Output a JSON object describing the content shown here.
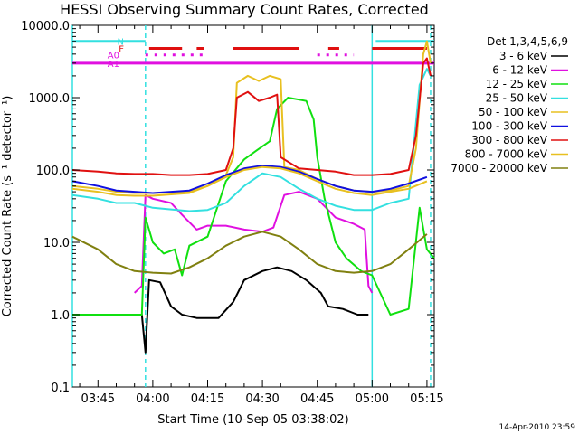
{
  "chart_data": {
    "type": "line",
    "title": "HESSI Observing Summary Count Rates, Corrected",
    "xlabel": "Start Time (10-Sep-05 03:38:02)",
    "ylabel": "Corrected Count Rate (s⁻¹ detector⁻¹)",
    "footer": "14-Apr-2010 23:59",
    "y_scale": "log",
    "ylim": [
      0.1,
      10000.0
    ],
    "xlim": [
      "03:38",
      "05:17"
    ],
    "y_ticks": [
      "0.1",
      "1.0",
      "10.0",
      "100.0",
      "1000.0",
      "10000.0"
    ],
    "x_ticks": [
      "03:45",
      "04:00",
      "04:15",
      "04:30",
      "04:45",
      "05:00",
      "05:15"
    ],
    "legend": {
      "title": "Det 1,3,4,5,6,9",
      "placement": "right"
    },
    "flags": [
      {
        "label": "N",
        "color": "#33e0e0",
        "intervals": [
          [
            "03:38",
            "03:58"
          ],
          [
            "05:01",
            "05:17"
          ]
        ],
        "level": 6000
      },
      {
        "label": "F",
        "color": "#e01010",
        "intervals": [
          [
            "03:59",
            "04:08"
          ],
          [
            "04:12",
            "04:14"
          ],
          [
            "04:22",
            "04:40"
          ],
          [
            "04:48",
            "04:51"
          ],
          [
            "05:00",
            "05:15"
          ]
        ],
        "level": 4800
      },
      {
        "label": "A0",
        "color": "#e010e0",
        "dotted_intervals": [
          [
            "03:58",
            "04:14"
          ],
          [
            "04:45",
            "04:55"
          ]
        ],
        "level": 3900
      },
      {
        "label": "A1",
        "color": "#e010e0",
        "intervals": [
          [
            "03:38",
            "05:17"
          ]
        ],
        "level": 3000
      }
    ],
    "vlines": [
      {
        "x": "03:38",
        "color": "#33e0e0",
        "style": "solid"
      },
      {
        "x": "03:58",
        "color": "#33e0e0",
        "style": "dashed"
      },
      {
        "x": "05:00",
        "color": "#33e0e0",
        "style": "solid"
      },
      {
        "x": "05:16",
        "color": "#33e0e0",
        "style": "dashed"
      }
    ],
    "series": [
      {
        "name": "3 - 6 keV",
        "color": "#000000",
        "points": [
          [
            "03:38",
            1.0
          ],
          [
            "03:45",
            1.0
          ],
          [
            "03:55",
            1.0
          ],
          [
            "03:57",
            1.0
          ],
          [
            "03:58",
            0.3
          ],
          [
            "03:59",
            3.0
          ],
          [
            "04:02",
            2.8
          ],
          [
            "04:05",
            1.3
          ],
          [
            "04:08",
            1.0
          ],
          [
            "04:12",
            0.9
          ],
          [
            "04:18",
            0.9
          ],
          [
            "04:22",
            1.5
          ],
          [
            "04:25",
            3.0
          ],
          [
            "04:30",
            4.0
          ],
          [
            "04:34",
            4.5
          ],
          [
            "04:38",
            4.0
          ],
          [
            "04:42",
            3.0
          ],
          [
            "04:46",
            2.0
          ],
          [
            "04:48",
            1.3
          ],
          [
            "04:52",
            1.2
          ],
          [
            "04:56",
            1.0
          ],
          [
            "04:59",
            1.0
          ]
        ]
      },
      {
        "name": "6 - 12 keV",
        "color": "#e010e0",
        "points": [
          [
            "03:55",
            2.0
          ],
          [
            "03:57",
            2.5
          ],
          [
            "03:58",
            45
          ],
          [
            "04:00",
            40
          ],
          [
            "04:05",
            35
          ],
          [
            "04:08",
            24
          ],
          [
            "04:12",
            15
          ],
          [
            "04:15",
            17
          ],
          [
            "04:20",
            17
          ],
          [
            "04:25",
            15
          ],
          [
            "04:30",
            14
          ],
          [
            "04:33",
            16
          ],
          [
            "04:36",
            45
          ],
          [
            "04:40",
            50
          ],
          [
            "04:45",
            40
          ],
          [
            "04:50",
            22
          ],
          [
            "04:55",
            18
          ],
          [
            "04:58",
            15
          ],
          [
            "04:59",
            2.5
          ],
          [
            "05:00",
            2.0
          ]
        ]
      },
      {
        "name": "12 - 25 keV",
        "color": "#10e010",
        "points": [
          [
            "03:38",
            1.0
          ],
          [
            "03:55",
            1.0
          ],
          [
            "03:57",
            1.0
          ],
          [
            "03:58",
            22
          ],
          [
            "04:00",
            10
          ],
          [
            "04:03",
            7
          ],
          [
            "04:06",
            8
          ],
          [
            "04:08",
            3.5
          ],
          [
            "04:10",
            9
          ],
          [
            "04:15",
            12
          ],
          [
            "04:20",
            70
          ],
          [
            "04:25",
            140
          ],
          [
            "04:28",
            180
          ],
          [
            "04:32",
            250
          ],
          [
            "04:34",
            700
          ],
          [
            "04:37",
            1000
          ],
          [
            "04:42",
            900
          ],
          [
            "04:44",
            500
          ],
          [
            "04:45",
            150
          ],
          [
            "04:47",
            40
          ],
          [
            "04:50",
            10
          ],
          [
            "04:53",
            6
          ],
          [
            "04:57",
            4
          ],
          [
            "05:00",
            3.5
          ],
          [
            "05:05",
            1.0
          ],
          [
            "05:10",
            1.2
          ],
          [
            "05:13",
            30
          ],
          [
            "05:15",
            8
          ],
          [
            "05:17",
            6
          ]
        ]
      },
      {
        "name": "25 - 50 keV",
        "color": "#33e0e0",
        "points": [
          [
            "03:38",
            45
          ],
          [
            "03:45",
            40
          ],
          [
            "03:50",
            35
          ],
          [
            "03:55",
            35
          ],
          [
            "03:58",
            32
          ],
          [
            "04:00",
            30
          ],
          [
            "04:10",
            27
          ],
          [
            "04:15",
            28
          ],
          [
            "04:20",
            35
          ],
          [
            "04:25",
            60
          ],
          [
            "04:30",
            90
          ],
          [
            "04:35",
            80
          ],
          [
            "04:40",
            55
          ],
          [
            "04:45",
            40
          ],
          [
            "04:50",
            32
          ],
          [
            "04:55",
            28
          ],
          [
            "05:00",
            28
          ],
          [
            "05:05",
            35
          ],
          [
            "05:10",
            40
          ],
          [
            "05:13",
            1500
          ],
          [
            "05:15",
            2500
          ],
          [
            "05:16",
            2000
          ]
        ]
      },
      {
        "name": "50 - 100 keV",
        "color": "#e8c020",
        "points": [
          [
            "03:38",
            60
          ],
          [
            "03:45",
            55
          ],
          [
            "03:50",
            50
          ],
          [
            "03:55",
            48
          ],
          [
            "04:00",
            48
          ],
          [
            "04:10",
            50
          ],
          [
            "04:15",
            60
          ],
          [
            "04:20",
            85
          ],
          [
            "04:22",
            150
          ],
          [
            "04:23",
            1600
          ],
          [
            "04:26",
            2000
          ],
          [
            "04:29",
            1700
          ],
          [
            "04:32",
            2000
          ],
          [
            "04:35",
            1800
          ],
          [
            "04:36",
            110
          ],
          [
            "04:40",
            100
          ],
          [
            "04:45",
            75
          ],
          [
            "04:50",
            60
          ],
          [
            "04:55",
            52
          ],
          [
            "05:00",
            50
          ],
          [
            "05:05",
            52
          ],
          [
            "05:10",
            60
          ],
          [
            "05:12",
            200
          ],
          [
            "05:14",
            4000
          ],
          [
            "05:15",
            6000
          ],
          [
            "05:16",
            3000
          ]
        ]
      },
      {
        "name": "100 - 300 keV",
        "color": "#1010e0",
        "points": [
          [
            "03:38",
            70
          ],
          [
            "03:45",
            60
          ],
          [
            "03:50",
            52
          ],
          [
            "03:55",
            50
          ],
          [
            "04:00",
            48
          ],
          [
            "04:10",
            52
          ],
          [
            "04:15",
            65
          ],
          [
            "04:20",
            85
          ],
          [
            "04:25",
            105
          ],
          [
            "04:30",
            115
          ],
          [
            "04:35",
            110
          ],
          [
            "04:40",
            95
          ],
          [
            "04:45",
            75
          ],
          [
            "04:50",
            60
          ],
          [
            "04:55",
            52
          ],
          [
            "05:00",
            50
          ],
          [
            "05:05",
            55
          ],
          [
            "05:10",
            65
          ],
          [
            "05:15",
            80
          ]
        ]
      },
      {
        "name": "300 - 800 keV",
        "color": "#e01010",
        "points": [
          [
            "03:38",
            100
          ],
          [
            "03:45",
            95
          ],
          [
            "03:50",
            90
          ],
          [
            "03:55",
            88
          ],
          [
            "04:00",
            88
          ],
          [
            "04:05",
            85
          ],
          [
            "04:10",
            85
          ],
          [
            "04:15",
            88
          ],
          [
            "04:20",
            100
          ],
          [
            "04:22",
            200
          ],
          [
            "04:23",
            1000
          ],
          [
            "04:26",
            1200
          ],
          [
            "04:29",
            900
          ],
          [
            "04:32",
            1000
          ],
          [
            "04:34",
            1100
          ],
          [
            "04:35",
            150
          ],
          [
            "04:40",
            105
          ],
          [
            "04:45",
            100
          ],
          [
            "04:50",
            95
          ],
          [
            "04:55",
            85
          ],
          [
            "05:00",
            85
          ],
          [
            "05:05",
            88
          ],
          [
            "05:10",
            100
          ],
          [
            "05:12",
            300
          ],
          [
            "05:14",
            3000
          ],
          [
            "05:15",
            3500
          ],
          [
            "05:16",
            2000
          ]
        ]
      },
      {
        "name": "800 - 7000 keV",
        "color": "#e8c020",
        "points": [
          [
            "03:38",
            55
          ],
          [
            "03:45",
            50
          ],
          [
            "03:50",
            45
          ],
          [
            "03:55",
            44
          ],
          [
            "04:00",
            44
          ],
          [
            "04:10",
            48
          ],
          [
            "04:15",
            60
          ],
          [
            "04:20",
            80
          ],
          [
            "04:25",
            100
          ],
          [
            "04:30",
            110
          ],
          [
            "04:35",
            105
          ],
          [
            "04:40",
            90
          ],
          [
            "04:45",
            70
          ],
          [
            "04:50",
            55
          ],
          [
            "04:55",
            48
          ],
          [
            "05:00",
            45
          ],
          [
            "05:05",
            50
          ],
          [
            "05:10",
            55
          ],
          [
            "05:15",
            70
          ]
        ]
      },
      {
        "name": "7000 - 20000 keV",
        "color": "#808010",
        "points": [
          [
            "03:38",
            12
          ],
          [
            "03:45",
            8
          ],
          [
            "03:50",
            5
          ],
          [
            "03:55",
            4
          ],
          [
            "04:00",
            3.8
          ],
          [
            "04:05",
            3.7
          ],
          [
            "04:10",
            4.5
          ],
          [
            "04:15",
            6
          ],
          [
            "04:20",
            9
          ],
          [
            "04:25",
            12
          ],
          [
            "04:30",
            14
          ],
          [
            "04:35",
            12
          ],
          [
            "04:40",
            8
          ],
          [
            "04:45",
            5
          ],
          [
            "04:50",
            4
          ],
          [
            "04:55",
            3.8
          ],
          [
            "05:00",
            4
          ],
          [
            "05:05",
            5
          ],
          [
            "05:10",
            8
          ],
          [
            "05:15",
            13
          ]
        ]
      }
    ]
  }
}
